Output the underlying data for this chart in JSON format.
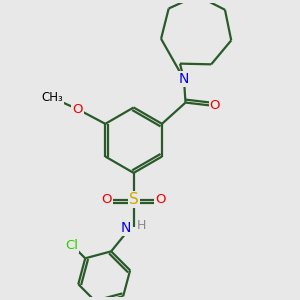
{
  "bg_color": "#e8e8e8",
  "bond_color": "#2a5a2a",
  "colors": {
    "N": "#0000ee",
    "O": "#ee0000",
    "S": "#ccaa00",
    "Cl": "#33cc00",
    "H": "#888888",
    "C": "#000000"
  },
  "lw": 1.6,
  "fs": 9.5
}
